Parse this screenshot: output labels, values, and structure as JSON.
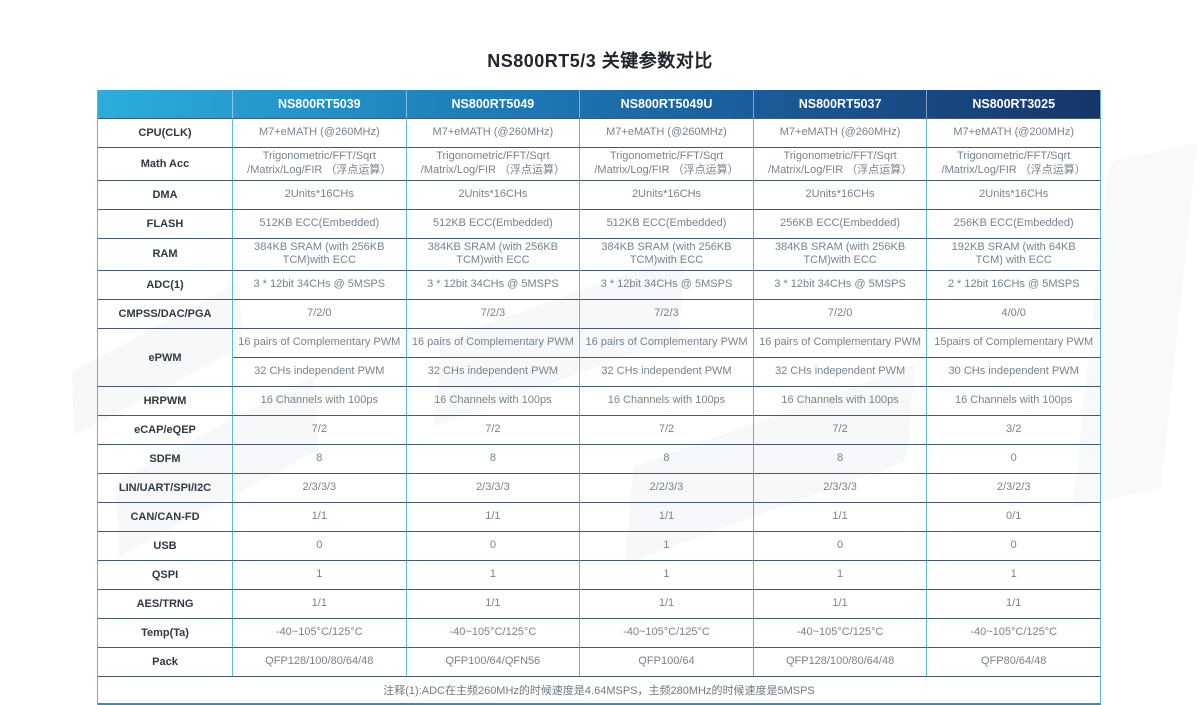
{
  "page": {
    "title": "NS800RT5/3 关键参数对比"
  },
  "table": {
    "columns": [
      "",
      "NS800RT5039",
      "NS800RT5049",
      "NS800RT5049U",
      "NS800RT5037",
      "NS800RT3025"
    ],
    "rows": [
      {
        "label": "CPU(CLK)",
        "values": [
          "M7+eMATH (@260MHz)",
          "M7+eMATH (@260MHz)",
          "M7+eMATH (@260MHz)",
          "M7+eMATH (@260MHz)",
          "M7+eMATH (@200MHz)"
        ]
      },
      {
        "label": "Math Acc",
        "values": [
          "Trigonometric/FFT/Sqrt\n/Matrix/Log/FIR （浮点运算）",
          "Trigonometric/FFT/Sqrt\n/Matrix/Log/FIR （浮点运算）",
          "Trigonometric/FFT/Sqrt\n/Matrix/Log/FIR （浮点运算）",
          "Trigonometric/FFT/Sqrt\n/Matrix/Log/FIR （浮点运算）",
          "Trigonometric/FFT/Sqrt\n/Matrix/Log/FIR （浮点运算）"
        ]
      },
      {
        "label": "DMA",
        "values": [
          "2Units*16CHs",
          "2Units*16CHs",
          "2Units*16CHs",
          "2Units*16CHs",
          "2Units*16CHs"
        ]
      },
      {
        "label": "FLASH",
        "values": [
          "512KB ECC(Embedded)",
          "512KB ECC(Embedded)",
          "512KB ECC(Embedded)",
          "256KB ECC(Embedded)",
          "256KB ECC(Embedded)"
        ]
      },
      {
        "label": "RAM",
        "values": [
          "384KB SRAM (with 256KB\nTCM)with ECC",
          "384KB SRAM (with 256KB\nTCM)with ECC",
          "384KB SRAM (with 256KB\nTCM)with ECC",
          "384KB SRAM (with 256KB\nTCM)with ECC",
          "192KB SRAM (with 64KB\nTCM) with ECC"
        ]
      },
      {
        "label": "ADC(1)",
        "values": [
          "3 * 12bit 34CHs @ 5MSPS",
          "3 * 12bit 34CHs @ 5MSPS",
          "3 * 12bit 34CHs @ 5MSPS",
          "3 * 12bit 34CHs @ 5MSPS",
          "2 * 12bit 16CHs @ 5MSPS"
        ]
      },
      {
        "label": "CMPSS/DAC/PGA",
        "values": [
          "7/2/0",
          "7/2/3",
          "7/2/3",
          "7/2/0",
          "4/0/0"
        ]
      },
      {
        "label": "ePWM",
        "span": 2,
        "values": [
          "16 pairs of Complementary PWM",
          "16 pairs of Complementary PWM",
          "16 pairs of Complementary PWM",
          "16 pairs of Complementary PWM",
          "15pairs of Complementary PWM"
        ]
      },
      {
        "label": "",
        "span": 0,
        "values": [
          "32 CHs independent PWM",
          "32 CHs independent PWM",
          "32 CHs independent PWM",
          "32 CHs independent PWM",
          "30 CHs independent PWM"
        ]
      },
      {
        "label": "HRPWM",
        "values": [
          "16 Channels with 100ps",
          "16 Channels with 100ps",
          "16 Channels with 100ps",
          "16 Channels with 100ps",
          "16 Channels with 100ps"
        ]
      },
      {
        "label": "eCAP/eQEP",
        "values": [
          "7/2",
          "7/2",
          "7/2",
          "7/2",
          "3/2"
        ]
      },
      {
        "label": "SDFM",
        "values": [
          "8",
          "8",
          "8",
          "8",
          "0"
        ]
      },
      {
        "label": "LIN/UART/SPI/I2C",
        "values": [
          "2/3/3/3",
          "2/3/3/3",
          "2/2/3/3",
          "2/3/3/3",
          "2/3/2/3"
        ]
      },
      {
        "label": "CAN/CAN-FD",
        "values": [
          "1/1",
          "1/1",
          "1/1",
          "1/1",
          "0/1"
        ]
      },
      {
        "label": "USB",
        "values": [
          "0",
          "0",
          "1",
          "0",
          "0"
        ]
      },
      {
        "label": "QSPI",
        "values": [
          "1",
          "1",
          "1",
          "1",
          "1"
        ]
      },
      {
        "label": "AES/TRNG",
        "values": [
          "1/1",
          "1/1",
          "1/1",
          "1/1",
          "1/1"
        ]
      },
      {
        "label": "Temp(Ta)",
        "values": [
          "-40~105°C/125°C",
          "-40~105°C/125°C",
          "-40~105°C/125°C",
          "-40~105°C/125°C",
          "-40~105°C/125°C"
        ]
      },
      {
        "label": "Pack",
        "values": [
          "QFP128/100/80/64/48",
          "QFP100/64/QFN56",
          "QFP100/64",
          "QFP128/100/80/64/48",
          "QFP80/64/48"
        ]
      }
    ],
    "footnote": "注释(1):ADC在主频260MHz的时候速度是4.64MSPS，主频280MHz的时候速度是5MSPS"
  },
  "colors": {
    "header_gradient_start": "#2caddc",
    "header_gradient_end": "#163569",
    "grid_vertical": "#62b8cf",
    "grid_horizontal": "#44586f",
    "table_bottom_border": "#2d93b2",
    "label_text": "#2e3844",
    "cell_text": "#76838f"
  }
}
